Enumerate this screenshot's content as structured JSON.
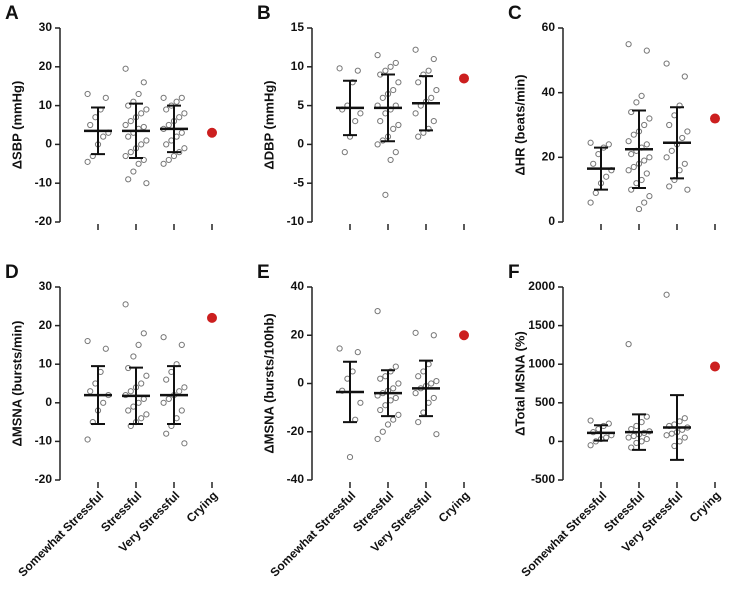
{
  "chart_data": [
    {
      "type": "dot",
      "panel": "A",
      "ylabel": "ΔSBP (mmHg)",
      "categories": [
        null,
        null,
        null,
        null
      ],
      "ylim": [
        -20,
        30
      ],
      "yticks": [
        -20,
        -10,
        0,
        10,
        20,
        30
      ],
      "point_colors": [
        "#777777",
        "#777777",
        "#777777",
        "#cc1f1f"
      ],
      "filled": [
        false,
        false,
        false,
        true
      ],
      "points": [
        [
          13,
          12,
          9,
          7,
          5,
          3,
          2,
          0,
          -3,
          -4.5
        ],
        [
          19.5,
          16,
          13,
          11,
          10,
          9,
          8,
          7,
          6,
          5,
          4.5,
          4,
          3,
          2,
          1,
          0,
          -1,
          -2,
          -3,
          -4,
          -5,
          -7,
          -9,
          -10
        ],
        [
          12,
          12,
          11,
          10,
          9,
          8,
          7,
          6,
          5,
          4,
          3,
          2,
          1,
          0,
          -1,
          -2,
          -3,
          -4,
          -5
        ],
        [
          3
        ]
      ],
      "mean": [
        3.5,
        3.5,
        4,
        null
      ],
      "sd": [
        6,
        7,
        6,
        null
      ]
    },
    {
      "type": "dot",
      "panel": "B",
      "ylabel": "ΔDBP (mmHg)",
      "categories": [
        null,
        null,
        null,
        null
      ],
      "ylim": [
        -10,
        15
      ],
      "yticks": [
        -10,
        -5,
        0,
        5,
        10,
        15
      ],
      "point_colors": [
        "#777777",
        "#777777",
        "#777777",
        "#cc1f1f"
      ],
      "filled": [
        false,
        false,
        false,
        true
      ],
      "points": [
        [
          9.8,
          9.5,
          8,
          5,
          4.5,
          4,
          3,
          1,
          -1
        ],
        [
          11.5,
          10.5,
          10,
          9.5,
          9,
          8,
          7,
          6.5,
          6,
          5,
          5,
          4.5,
          4,
          3,
          2.5,
          2,
          1,
          0.5,
          0,
          -1,
          -2,
          -6.5
        ],
        [
          12.2,
          11,
          9.5,
          9,
          8,
          7,
          6,
          5.5,
          5,
          4,
          3,
          2,
          1.5,
          1
        ],
        [
          8.5
        ]
      ],
      "mean": [
        4.7,
        4.7,
        5.3,
        null
      ],
      "sd": [
        3.5,
        4.3,
        3.5,
        null
      ]
    },
    {
      "type": "dot",
      "panel": "C",
      "ylabel": "ΔHR (beats/min)",
      "categories": [
        null,
        null,
        null,
        null
      ],
      "ylim": [
        0,
        60
      ],
      "yticks": [
        0,
        20,
        40,
        60
      ],
      "point_colors": [
        "#777777",
        "#777777",
        "#777777",
        "#cc1f1f"
      ],
      "filled": [
        false,
        false,
        false,
        true
      ],
      "points": [
        [
          24.5,
          24,
          23,
          21,
          18,
          16,
          14,
          12,
          9,
          6
        ],
        [
          55,
          53,
          39,
          37,
          34,
          32,
          30,
          28,
          27,
          25,
          24,
          23,
          22,
          21,
          20,
          19,
          18,
          17,
          16,
          15,
          13,
          12,
          10,
          8,
          6,
          4
        ],
        [
          49,
          45,
          36,
          33,
          30,
          28,
          26,
          24,
          22,
          20,
          18,
          16,
          13,
          11,
          10
        ],
        [
          32
        ]
      ],
      "mean": [
        16.5,
        22.5,
        24.5,
        null
      ],
      "sd": [
        6.5,
        12,
        11,
        null
      ]
    },
    {
      "type": "dot",
      "panel": "D",
      "ylabel": "ΔMSNA (bursts/min)",
      "categories": [
        "Somewhat Stressful",
        "Stressful",
        "Very Stressful",
        "Crying"
      ],
      "ylim": [
        -20,
        30
      ],
      "yticks": [
        -20,
        -10,
        0,
        10,
        20,
        30
      ],
      "point_colors": [
        "#777777",
        "#777777",
        "#777777",
        "#cc1f1f"
      ],
      "filled": [
        false,
        false,
        false,
        true
      ],
      "points": [
        [
          16,
          14,
          8,
          5,
          3,
          2,
          0,
          -2,
          -5,
          -9.5
        ],
        [
          25.5,
          18,
          15,
          12,
          9,
          7,
          5,
          4,
          3,
          2,
          1,
          0,
          -1,
          -2,
          -3,
          -4,
          -5,
          -6
        ],
        [
          17,
          15,
          10,
          8,
          6,
          4,
          3,
          2,
          1,
          0,
          -2,
          -4,
          -6,
          -8,
          -10.5
        ],
        [
          22
        ]
      ],
      "mean": [
        2,
        1.8,
        2,
        null
      ],
      "sd": [
        7.5,
        7.3,
        7.5,
        null
      ]
    },
    {
      "type": "dot",
      "panel": "E",
      "ylabel": "ΔMSNA (bursts/100hb)",
      "categories": [
        "Somewhat Stressful",
        "Stressful",
        "Very Stressful",
        "Crying"
      ],
      "ylim": [
        -40,
        40
      ],
      "yticks": [
        -40,
        -20,
        0,
        20,
        40
      ],
      "point_colors": [
        "#777777",
        "#777777",
        "#777777",
        "#cc1f1f"
      ],
      "filled": [
        false,
        false,
        false,
        true
      ],
      "points": [
        [
          14.5,
          13,
          5,
          2,
          -3,
          -8,
          -15,
          -30.5
        ],
        [
          30,
          7,
          5,
          3,
          2,
          0,
          -2,
          -3,
          -4,
          -5,
          -6,
          -7,
          -9,
          -11,
          -13,
          -15,
          -17,
          -20,
          -23
        ],
        [
          21,
          20,
          8,
          5,
          3,
          1,
          0,
          -1,
          -2,
          -4,
          -6,
          -8,
          -12,
          -16,
          -21
        ],
        [
          20
        ]
      ],
      "mean": [
        -3.5,
        -4,
        -2,
        null
      ],
      "sd": [
        12.5,
        9.5,
        11.5,
        null
      ]
    },
    {
      "type": "dot",
      "panel": "F",
      "ylabel": "ΔTotal MSNA (%)",
      "categories": [
        "Somewhat Stressful",
        "Stressful",
        "Very Stressful",
        "Crying"
      ],
      "ylim": [
        -500,
        2000
      ],
      "yticks": [
        -500,
        0,
        500,
        1000,
        1500,
        2000
      ],
      "point_colors": [
        "#777777",
        "#777777",
        "#777777",
        "#cc1f1f"
      ],
      "filled": [
        false,
        false,
        false,
        true
      ],
      "points": [
        [
          270,
          230,
          200,
          160,
          120,
          80,
          50,
          30,
          0,
          -50
        ],
        [
          1260,
          320,
          250,
          200,
          160,
          130,
          110,
          90,
          70,
          50,
          30,
          0,
          -20,
          -80
        ],
        [
          1900,
          300,
          260,
          220,
          200,
          180,
          150,
          120,
          100,
          80,
          50,
          0,
          -60
        ],
        [
          970
        ]
      ],
      "mean": [
        110,
        120,
        180,
        null
      ],
      "sd": [
        100,
        230,
        420,
        null
      ]
    }
  ]
}
